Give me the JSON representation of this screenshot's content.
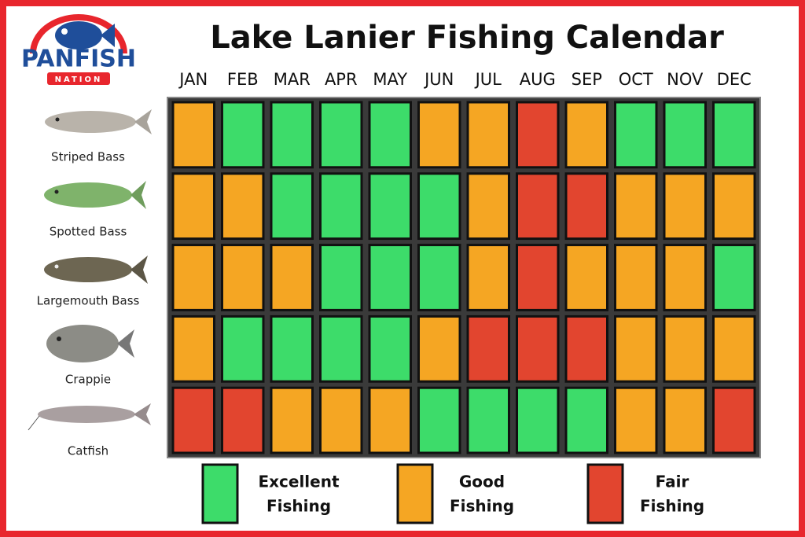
{
  "logo": {
    "name": "PANFISH",
    "tagline": "NATION"
  },
  "title": "Lake Lanier Fishing Calendar",
  "months": [
    "JAN",
    "FEB",
    "MAR",
    "APR",
    "MAY",
    "JUN",
    "JUL",
    "AUG",
    "SEP",
    "OCT",
    "NOV",
    "DEC"
  ],
  "rows": [
    {
      "fish": "Striped Bass",
      "ratings": [
        1,
        0,
        0,
        0,
        0,
        1,
        1,
        2,
        1,
        0,
        0,
        0
      ]
    },
    {
      "fish": "Spotted Bass",
      "ratings": [
        1,
        1,
        0,
        0,
        0,
        0,
        1,
        2,
        2,
        1,
        1,
        1
      ]
    },
    {
      "fish": "Largemouth Bass",
      "ratings": [
        1,
        1,
        1,
        0,
        0,
        0,
        1,
        2,
        1,
        1,
        1,
        0
      ]
    },
    {
      "fish": "Crappie",
      "ratings": [
        1,
        0,
        0,
        0,
        0,
        1,
        2,
        2,
        2,
        1,
        1,
        1
      ]
    },
    {
      "fish": "Catfish",
      "ratings": [
        2,
        2,
        1,
        1,
        1,
        0,
        0,
        0,
        0,
        1,
        1,
        2
      ]
    }
  ],
  "legend": [
    {
      "label": [
        "Excellent",
        "Fishing"
      ],
      "color": "#3ddc6a"
    },
    {
      "label": [
        "Good",
        "Fishing"
      ],
      "color": "#f5a623"
    },
    {
      "label": [
        "Fair",
        "Fishing"
      ],
      "color": "#e2452f"
    }
  ]
}
